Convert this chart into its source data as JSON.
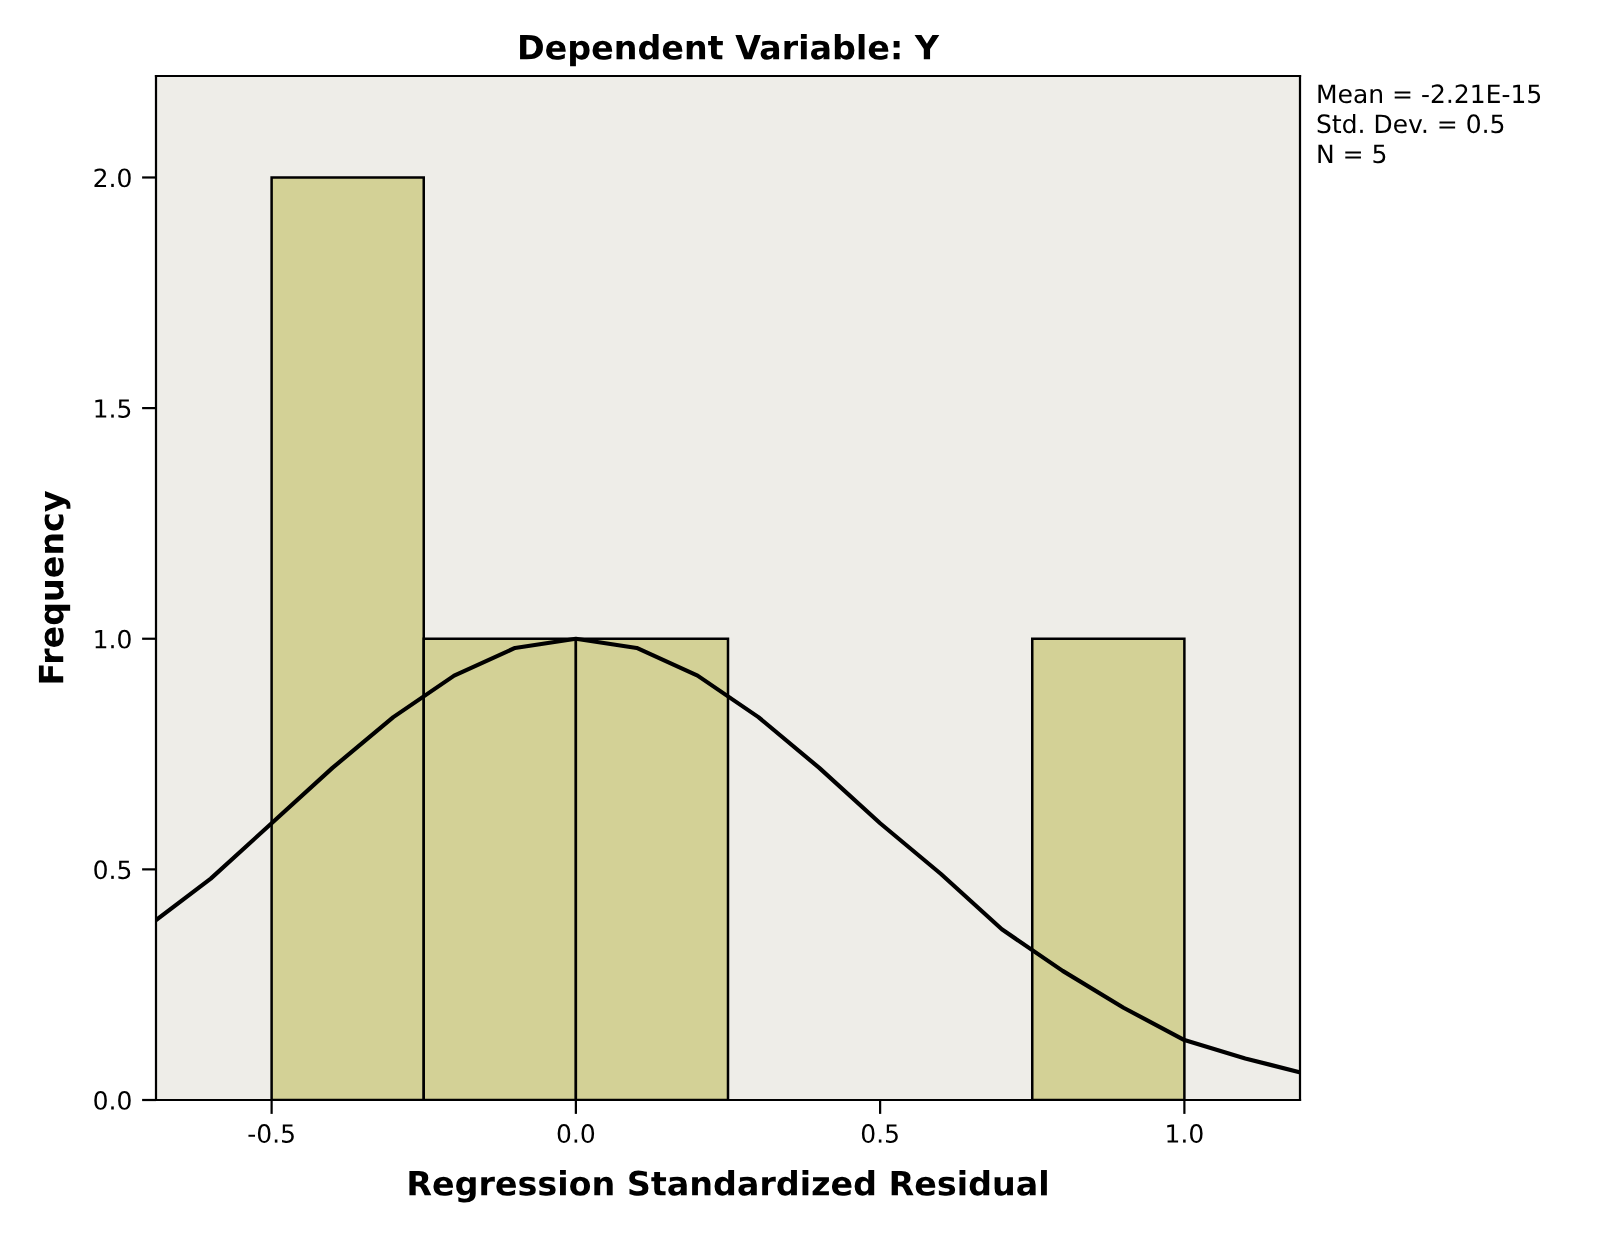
{
  "chart_data": {
    "type": "histogram",
    "title": "Dependent Variable: Y",
    "xlabel": "Regression Standardized Residual",
    "ylabel": "Frequency",
    "bins": [
      -0.5,
      -0.25,
      0.0,
      0.25,
      0.5,
      0.75,
      1.0
    ],
    "values": [
      2,
      1,
      1,
      0,
      0,
      1
    ],
    "color": "#d3d196",
    "series": [
      {
        "type": "line",
        "color": "#000000",
        "x": [
          -0.69,
          -0.6,
          -0.5,
          -0.4,
          -0.3,
          -0.2,
          -0.1,
          0.0,
          0.1,
          0.2,
          0.3,
          0.4,
          0.5,
          0.6,
          0.7,
          0.8,
          0.9,
          1.0,
          1.1,
          1.19
        ],
        "values": [
          0.39,
          0.48,
          0.6,
          0.72,
          0.83,
          0.92,
          0.98,
          1.0,
          0.98,
          0.92,
          0.83,
          0.72,
          0.6,
          0.49,
          0.37,
          0.28,
          0.2,
          0.13,
          0.09,
          0.06
        ]
      }
    ],
    "xlim": [
      -0.69,
      1.19
    ],
    "xticks": [
      -0.5,
      {
        "value": 0,
        "label": "0.0"
      },
      0.5,
      {
        "value": 1,
        "label": "1.0"
      }
    ],
    "ylim": [
      0,
      2.22
    ],
    "yticks": [
      {
        "value": 0,
        "label": "0.0"
      },
      0.5,
      {
        "value": 1,
        "label": "1.0"
      },
      1.5,
      {
        "value": 2,
        "label": "2.0"
      }
    ],
    "grid": false,
    "legend": false,
    "annotations": [
      "Mean = -2.21E-15",
      "Std. Dev. = 0.5",
      "N = 5"
    ]
  }
}
